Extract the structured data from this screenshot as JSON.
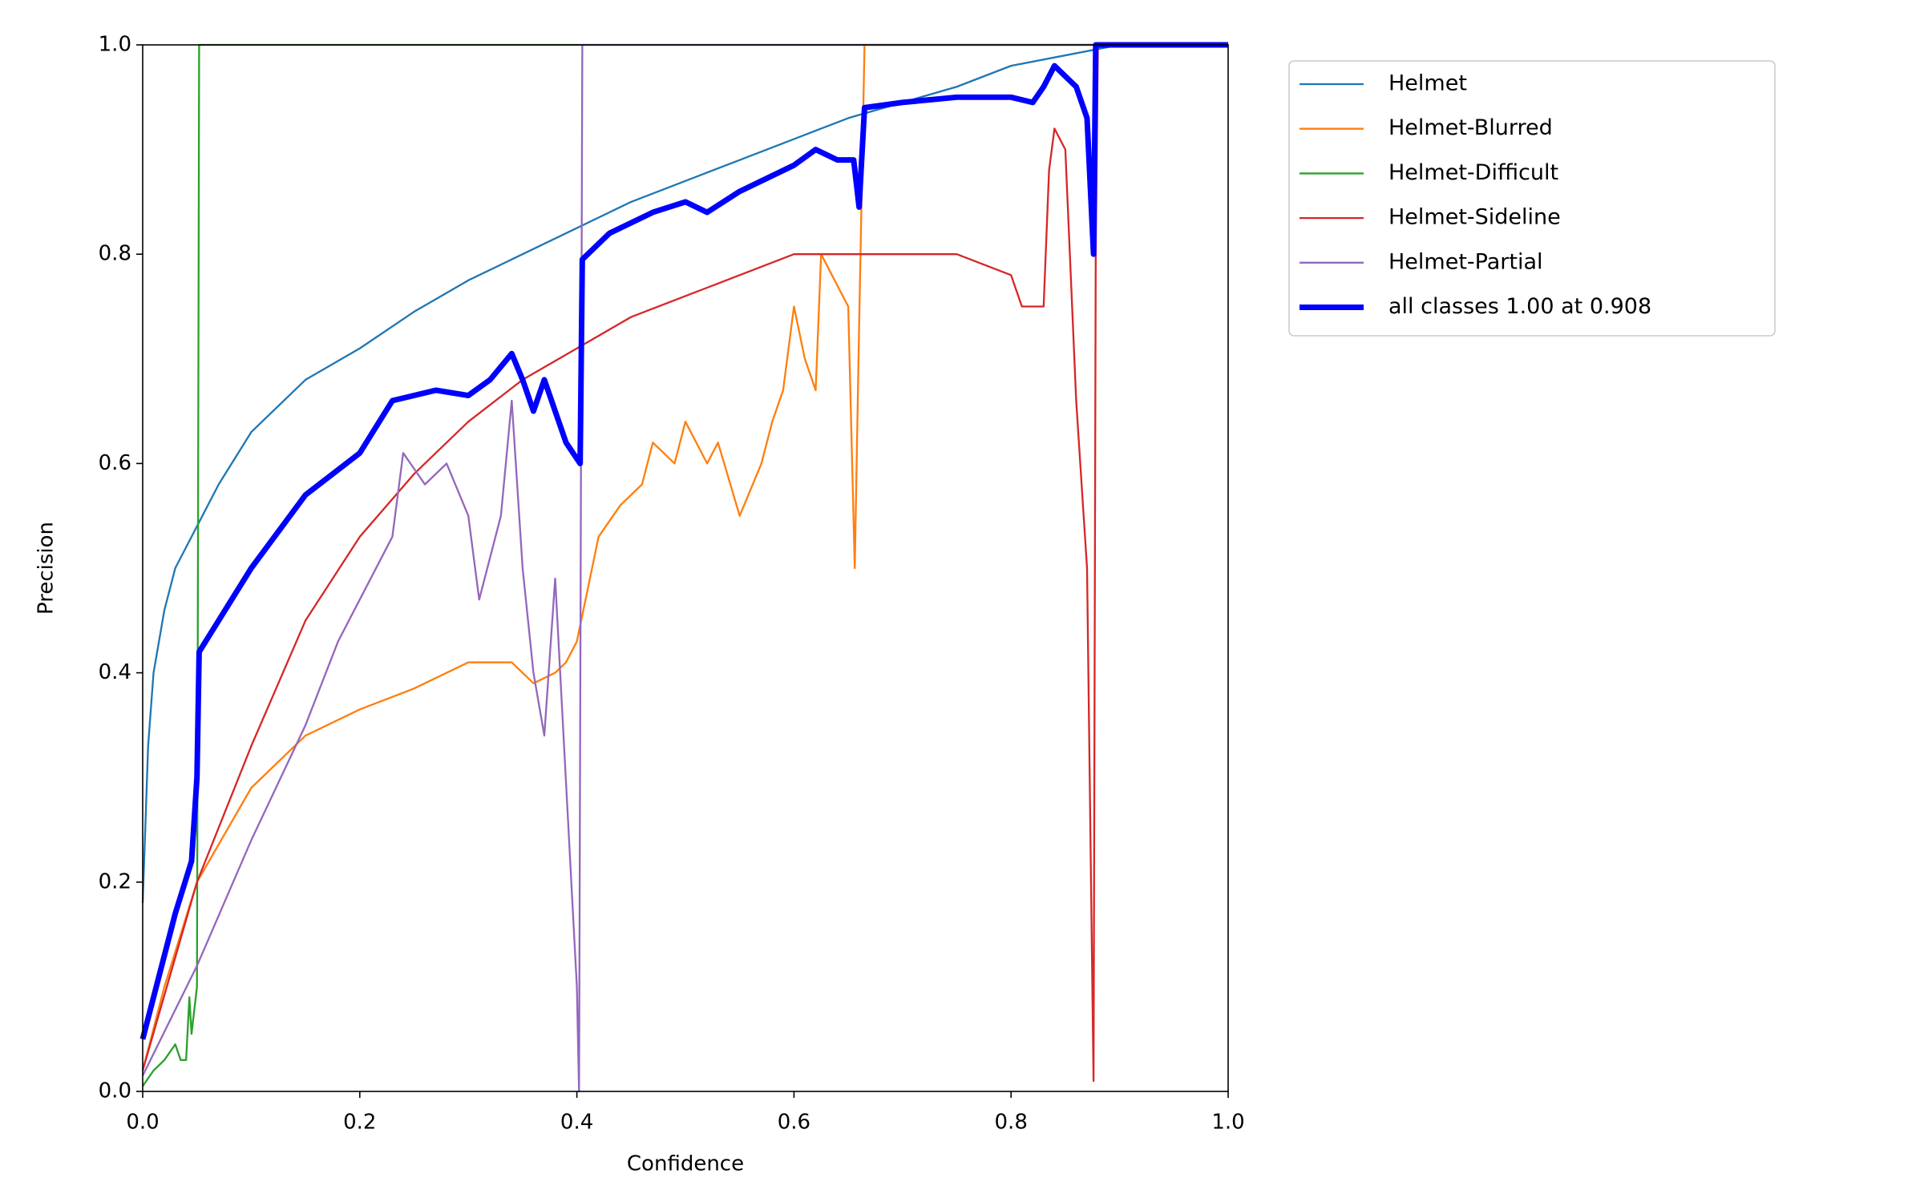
{
  "chart_data": {
    "type": "line",
    "x_label": "Confidence",
    "y_label": "Precision",
    "xlim": [
      0,
      1
    ],
    "ylim": [
      0,
      1
    ],
    "xticks": [
      {
        "value": 0,
        "label": "0.0"
      },
      0.2,
      0.4,
      0.6,
      0.8,
      {
        "value": 1,
        "label": "1.0"
      }
    ],
    "yticks": [
      {
        "value": 0,
        "label": "0.0"
      },
      0.2,
      0.4,
      0.6,
      0.8,
      {
        "value": 1,
        "label": "1.0"
      }
    ],
    "legend": "upper-right-outside",
    "series": [
      {
        "name": "Helmet",
        "color": "#1f77b4",
        "width": 1.5,
        "x": [
          0,
          0.005,
          0.01,
          0.02,
          0.03,
          0.05,
          0.07,
          0.1,
          0.15,
          0.2,
          0.25,
          0.3,
          0.35,
          0.4,
          0.45,
          0.5,
          0.55,
          0.6,
          0.65,
          0.7,
          0.75,
          0.8,
          0.85,
          0.9,
          0.95,
          1
        ],
        "values": [
          0.18,
          0.33,
          0.4,
          0.46,
          0.5,
          0.54,
          0.58,
          0.63,
          0.68,
          0.71,
          0.745,
          0.775,
          0.8,
          0.825,
          0.85,
          0.87,
          0.89,
          0.91,
          0.93,
          0.945,
          0.96,
          0.98,
          0.99,
          1,
          1,
          1
        ]
      },
      {
        "name": "Helmet-Blurred",
        "color": "#ff7f0e",
        "width": 1.5,
        "x": [
          0,
          0.02,
          0.05,
          0.1,
          0.15,
          0.2,
          0.25,
          0.3,
          0.34,
          0.36,
          0.38,
          0.39,
          0.4,
          0.41,
          0.42,
          0.44,
          0.46,
          0.47,
          0.49,
          0.5,
          0.52,
          0.53,
          0.55,
          0.57,
          0.58,
          0.59,
          0.6,
          0.61,
          0.62,
          0.625,
          0.65,
          0.656,
          0.66,
          0.665,
          0.7,
          1
        ],
        "values": [
          0.02,
          0.1,
          0.2,
          0.29,
          0.34,
          0.365,
          0.385,
          0.41,
          0.41,
          0.39,
          0.4,
          0.41,
          0.43,
          0.48,
          0.53,
          0.56,
          0.58,
          0.62,
          0.6,
          0.64,
          0.6,
          0.62,
          0.55,
          0.6,
          0.64,
          0.67,
          0.75,
          0.7,
          0.67,
          0.8,
          0.75,
          0.5,
          0.73,
          1,
          1,
          1
        ]
      },
      {
        "name": "Helmet-Difficult",
        "color": "#2ca02c",
        "width": 1.5,
        "x": [
          0,
          0.01,
          0.02,
          0.03,
          0.035,
          0.04,
          0.043,
          0.045,
          0.05,
          0.052,
          1
        ],
        "values": [
          0.005,
          0.02,
          0.03,
          0.045,
          0.03,
          0.03,
          0.09,
          0.055,
          0.1,
          1,
          1
        ]
      },
      {
        "name": "Helmet-Sideline",
        "color": "#d62728",
        "width": 1.5,
        "x": [
          0,
          0.05,
          0.1,
          0.15,
          0.2,
          0.25,
          0.3,
          0.35,
          0.4,
          0.45,
          0.5,
          0.55,
          0.6,
          0.65,
          0.7,
          0.75,
          0.8,
          0.81,
          0.83,
          0.835,
          0.84,
          0.85,
          0.86,
          0.87,
          0.876,
          0.878,
          0.88,
          1
        ],
        "values": [
          0.02,
          0.2,
          0.33,
          0.45,
          0.53,
          0.59,
          0.64,
          0.68,
          0.71,
          0.74,
          0.76,
          0.78,
          0.8,
          0.8,
          0.8,
          0.8,
          0.78,
          0.75,
          0.75,
          0.88,
          0.92,
          0.9,
          0.66,
          0.5,
          0.01,
          0.8,
          1,
          1
        ]
      },
      {
        "name": "Helmet-Partial",
        "color": "#9467bd",
        "width": 1.5,
        "x": [
          0,
          0.05,
          0.1,
          0.15,
          0.18,
          0.2,
          0.23,
          0.24,
          0.26,
          0.28,
          0.3,
          0.31,
          0.33,
          0.34,
          0.35,
          0.36,
          0.37,
          0.38,
          0.4,
          0.402,
          0.405,
          1
        ],
        "values": [
          0.015,
          0.12,
          0.24,
          0.35,
          0.43,
          0.47,
          0.53,
          0.61,
          0.58,
          0.6,
          0.55,
          0.47,
          0.55,
          0.66,
          0.5,
          0.4,
          0.34,
          0.49,
          0.1,
          0,
          1,
          1
        ]
      },
      {
        "name": "all classes 1.00 at 0.908",
        "color": "#0000ff",
        "width": 4.5,
        "x": [
          0,
          0.02,
          0.03,
          0.045,
          0.05,
          0.052,
          0.07,
          0.1,
          0.15,
          0.2,
          0.23,
          0.27,
          0.3,
          0.32,
          0.34,
          0.35,
          0.36,
          0.37,
          0.38,
          0.39,
          0.403,
          0.405,
          0.43,
          0.47,
          0.5,
          0.52,
          0.55,
          0.6,
          0.62,
          0.64,
          0.655,
          0.66,
          0.665,
          0.7,
          0.75,
          0.8,
          0.82,
          0.83,
          0.84,
          0.86,
          0.87,
          0.876,
          0.878,
          1
        ],
        "values": [
          0.05,
          0.13,
          0.17,
          0.22,
          0.3,
          0.42,
          0.45,
          0.5,
          0.57,
          0.61,
          0.66,
          0.67,
          0.665,
          0.68,
          0.705,
          0.68,
          0.65,
          0.68,
          0.65,
          0.62,
          0.6,
          0.795,
          0.82,
          0.84,
          0.85,
          0.84,
          0.86,
          0.885,
          0.9,
          0.89,
          0.89,
          0.845,
          0.94,
          0.945,
          0.95,
          0.95,
          0.945,
          0.96,
          0.98,
          0.96,
          0.93,
          0.8,
          1,
          1
        ]
      }
    ]
  }
}
